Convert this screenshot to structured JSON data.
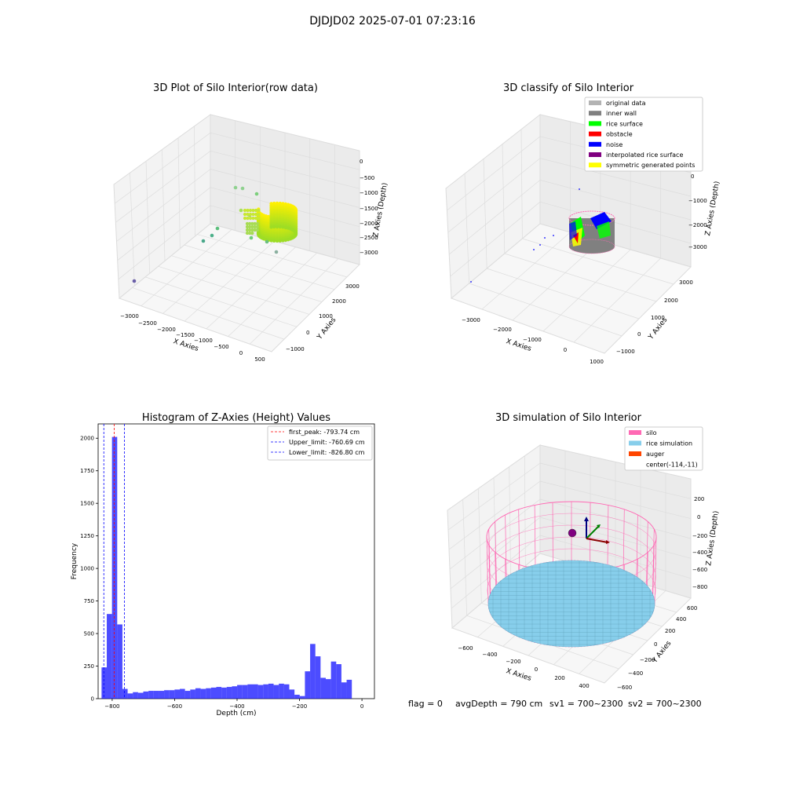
{
  "figure": {
    "suptitle": "DJDJD02 2025-07-01 07:23:16"
  },
  "panel_raw": {
    "title": "3D Plot of Silo Interior(row data)",
    "xlabel": "X Axies",
    "ylabel": "Y Axies",
    "zlabel": "Z Axies (Depth)",
    "x_ticks": [
      "−3000",
      "−2500",
      "−2000",
      "−1500",
      "−1000",
      "−500",
      "0",
      "500"
    ],
    "y_ticks": [
      "−1000",
      "0",
      "1000",
      "2000",
      "3000"
    ],
    "z_ticks": [
      "0",
      "−500",
      "−1000",
      "−1500",
      "−2000",
      "−2500",
      "−3000"
    ]
  },
  "panel_classify": {
    "title": "3D classify of Silo Interior",
    "xlabel": "X Axies",
    "ylabel": "Y Axies",
    "zlabel": "Z Axies (Depth)",
    "x_ticks": [
      "−3000",
      "−2000",
      "−1000",
      "0",
      "1000"
    ],
    "y_ticks": [
      "−1000",
      "0",
      "1000",
      "2000",
      "3000"
    ],
    "z_ticks": [
      "0",
      "−1000",
      "−2000",
      "−3000"
    ],
    "legend": [
      {
        "label": "original data",
        "color": "#b3b3b3"
      },
      {
        "label": "inner wall",
        "color": "#808080"
      },
      {
        "label": "rice surface",
        "color": "#00ff00"
      },
      {
        "label": "obstacle",
        "color": "#ff0000"
      },
      {
        "label": "noise",
        "color": "#0000ff"
      },
      {
        "label": "interpolated rice surface",
        "color": "#800080"
      },
      {
        "label": "symmetric generated points",
        "color": "#ffff00"
      }
    ]
  },
  "panel_sim": {
    "title": "3D simulation of Silo Interior",
    "xlabel": "X Axies",
    "ylabel": "Y Axies",
    "zlabel": "Z Axies (Depth)",
    "x_ticks": [
      "−600",
      "−400",
      "−200",
      "0",
      "200",
      "400"
    ],
    "y_ticks": [
      "−600",
      "−400",
      "−200",
      "0",
      "200",
      "400",
      "600"
    ],
    "z_ticks": [
      "200",
      "0",
      "−200",
      "−400",
      "−600",
      "−800"
    ],
    "legend": [
      {
        "label": "silo",
        "color": "#ff69b4"
      },
      {
        "label": "rice simulation",
        "color": "#87ceeb"
      },
      {
        "label": "auger",
        "color": "#ff4500"
      },
      {
        "label": "center(-114,-11)",
        "color": ""
      }
    ],
    "footer": {
      "flag": "flag = 0",
      "avg": "avgDepth = 790 cm",
      "sv1": "sv1 = 700~2300",
      "sv2": "sv2 = 700~2300"
    }
  },
  "chart_data": [
    {
      "type": "scatter",
      "title": "3D Plot of Silo Interior(row data)",
      "xlabel": "X Axies",
      "ylabel": "Y Axies",
      "zlabel": "Z Axies (Depth)",
      "xlim": [
        -3200,
        600
      ],
      "ylim": [
        -1200,
        3200
      ],
      "zlim": [
        -3300,
        100
      ]
    },
    {
      "type": "scatter",
      "title": "3D classify of Silo Interior",
      "xlabel": "X Axies",
      "ylabel": "Y Axies",
      "zlabel": "Z Axies (Depth)",
      "xlim": [
        -3300,
        1000
      ],
      "ylim": [
        -1200,
        3200
      ],
      "zlim": [
        -3300,
        100
      ],
      "legend_position": "top-right"
    },
    {
      "type": "bar",
      "title": "Histogram of Z-Axies (Height) Values",
      "xlabel": "Depth (cm)",
      "ylabel": "Frequency",
      "xlim": [
        -845,
        40
      ],
      "ylim": [
        0,
        2110
      ],
      "x_ticks": [
        -800,
        -600,
        -400,
        -200,
        0
      ],
      "y_ticks": [
        0,
        250,
        500,
        750,
        1000,
        1250,
        1500,
        1750,
        2000
      ],
      "bin_start": -834,
      "bin_width": 16.7,
      "values": [
        240,
        650,
        2010,
        570,
        75,
        40,
        50,
        45,
        55,
        60,
        60,
        60,
        65,
        65,
        70,
        75,
        60,
        70,
        80,
        75,
        80,
        85,
        90,
        85,
        90,
        95,
        105,
        105,
        110,
        110,
        105,
        110,
        115,
        105,
        115,
        110,
        70,
        30,
        20,
        210,
        420,
        325,
        160,
        150,
        285,
        265,
        125,
        145
      ],
      "bar_color": "#0000ff",
      "vlines": [
        {
          "label": "first_peak: -793.74 cm",
          "x": -793.74,
          "color": "#ff0000"
        },
        {
          "label": "Upper_limit: -760.69 cm",
          "x": -760.69,
          "color": "#0000ff"
        },
        {
          "label": "Lower_limit: -826.80 cm",
          "x": -826.8,
          "color": "#0000ff"
        }
      ],
      "legend_position": "top-right"
    },
    {
      "type": "scatter",
      "title": "3D simulation of Silo Interior",
      "xlabel": "X Axies",
      "ylabel": "Y Axies",
      "zlabel": "Z Axies (Depth)",
      "xlim": [
        -700,
        500
      ],
      "ylim": [
        -650,
        650
      ],
      "zlim": [
        -900,
        300
      ],
      "legend_position": "top-right"
    }
  ]
}
